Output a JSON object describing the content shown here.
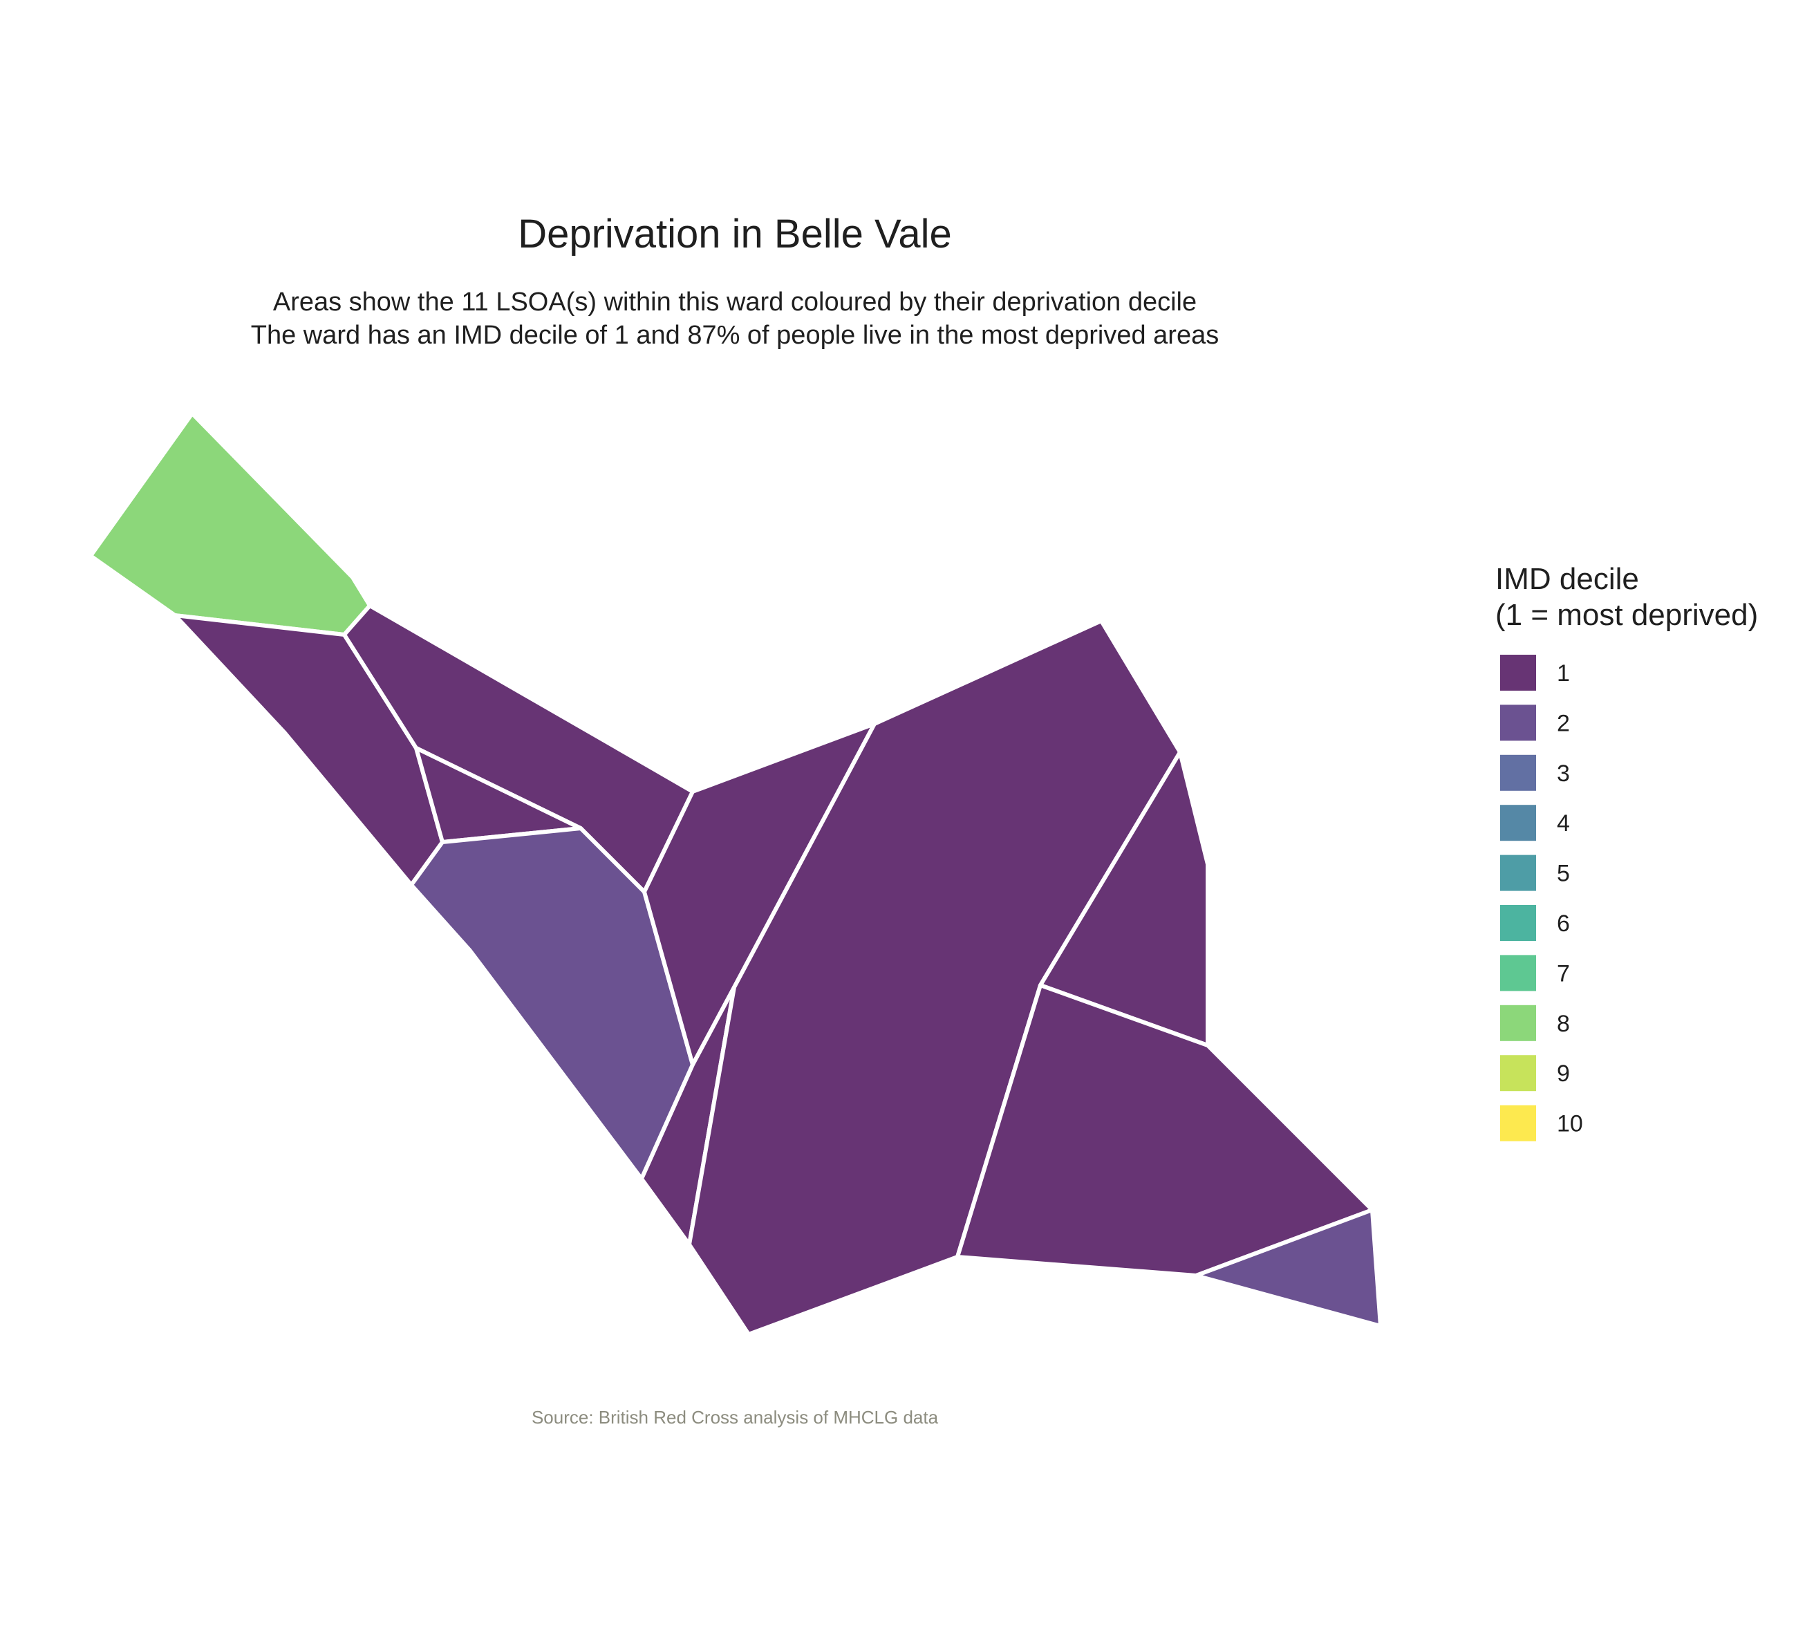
{
  "title": "Deprivation in Belle Vale",
  "subtitle_line1": "Areas show the 11 LSOA(s) within this ward coloured by their deprivation decile",
  "subtitle_line2": "The ward has an IMD decile of 1 and 87% of people live in the most deprived areas",
  "caption": "Source: British Red Cross analysis of MHCLG data",
  "legend": {
    "title_line1": "IMD decile",
    "title_line2": "(1 = most deprived)",
    "items": [
      {
        "label": "1",
        "color": "#673474"
      },
      {
        "label": "2",
        "color": "#6b5291"
      },
      {
        "label": "3",
        "color": "#6270a3"
      },
      {
        "label": "4",
        "color": "#5588a6"
      },
      {
        "label": "5",
        "color": "#4e9da6"
      },
      {
        "label": "6",
        "color": "#4cb4a0"
      },
      {
        "label": "7",
        "color": "#5ec892"
      },
      {
        "label": "8",
        "color": "#8cd77a"
      },
      {
        "label": "9",
        "color": "#c7e35b"
      },
      {
        "label": "10",
        "color": "#fde94f"
      }
    ]
  },
  "areas": [
    {
      "id": "lsoa-nw-tip",
      "decile": 8
    },
    {
      "id": "lsoa-west",
      "decile": 1
    },
    {
      "id": "lsoa-north-wedge",
      "decile": 1
    },
    {
      "id": "lsoa-small-triangle",
      "decile": 1
    },
    {
      "id": "lsoa-central-west",
      "decile": 2
    },
    {
      "id": "lsoa-central",
      "decile": 1
    },
    {
      "id": "lsoa-south-sliver",
      "decile": 1
    },
    {
      "id": "lsoa-large-central",
      "decile": 1
    },
    {
      "id": "lsoa-east",
      "decile": 1
    },
    {
      "id": "lsoa-southeast",
      "decile": 1
    },
    {
      "id": "lsoa-far-southeast",
      "decile": 2
    }
  ]
}
